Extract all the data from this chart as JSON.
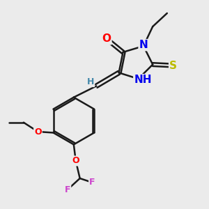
{
  "background_color": "#ebebeb",
  "bond_color": "#1a1a1a",
  "bond_width": 1.8,
  "atom_colors": {
    "O": "#ff0000",
    "N": "#0000ee",
    "S": "#bbbb00",
    "F": "#cc44cc",
    "H_label": "#4488aa",
    "C": "#1a1a1a"
  },
  "font_size_large": 11,
  "font_size_medium": 9,
  "font_size_small": 8
}
